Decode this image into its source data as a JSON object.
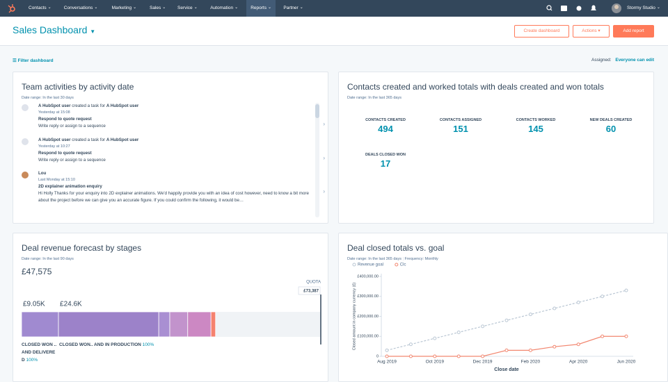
{
  "nav": {
    "items": [
      "Contacts",
      "Conversations",
      "Marketing",
      "Sales",
      "Service",
      "Automation",
      "Reports",
      "Partner"
    ],
    "active": 6,
    "user": "Stormy Studio"
  },
  "header": {
    "title": "Sales Dashboard",
    "buttons": [
      "Create dashboard",
      "Actions",
      "Add report"
    ]
  },
  "filter": {
    "label": "Filter dashboard",
    "assigned_label": "Assigned:",
    "assigned_value": "Everyone can edit"
  },
  "activities": {
    "title": "Team activities by activity date",
    "date_range": "Date range: In the last 30 days",
    "items": [
      {
        "actor": "A HubSpot user",
        "action": "created a task for",
        "target": "A HubSpot user",
        "time": "Yesterday at 15:08",
        "subject": "Respond to quote request",
        "body": "Write reply or assign to a sequence"
      },
      {
        "actor": "A HubSpot user",
        "action": "created a task for",
        "target": "A HubSpot user",
        "time": "Yesterday at 10:27",
        "subject": "Respond to quote request",
        "body": "Write reply or assign to a sequence"
      },
      {
        "actor": "Lou",
        "time": "Last Monday at 15:10",
        "subject": "2D explainer animation enquiry",
        "body": "Hi Holly Thanks for your enquiry into 2D explainer animations. We'd happily provide you with an idea of cost however, need to know a bit more about the project before we can give you an accurate figure. If you could confirm the following, it would be…"
      }
    ]
  },
  "totals": {
    "title": "Contacts created and worked totals with deals created and won totals",
    "date_range": "Date range: In the last 365 days",
    "metrics": [
      {
        "label": "CONTACTS CREATED",
        "value": "494"
      },
      {
        "label": "CONTACTS ASSIGNED",
        "value": "151"
      },
      {
        "label": "CONTACTS WORKED",
        "value": "145"
      },
      {
        "label": "NEW DEALS CREATED",
        "value": "60"
      },
      {
        "label": "DEALS CLOSED WON",
        "value": "17"
      }
    ]
  },
  "forecast": {
    "title": "Deal revenue forecast by stages",
    "date_range": "Date range: In the last 90 days",
    "total": "£47,575",
    "quota_label": "QUOTA",
    "quota": {
      "value": 73387,
      "label": "£73,387"
    },
    "segments": {
      "values": [
        9050,
        24600,
        2700,
        4400,
        5700,
        1125
      ],
      "value_labels": [
        "£9.05K",
        "£24.6K",
        null,
        null,
        null,
        null
      ],
      "colors": [
        "#a08ad0",
        "#9c82c9",
        "#a98fd2",
        "#c293cc",
        "#cc88c3",
        "#f5826f"
      ]
    },
    "stages": [
      {
        "name": "CLOSED WON .. AND DELIVERED",
        "percent": "100%"
      },
      {
        "name": "CLOSED WON.. AND IN PRODUCTION",
        "percent": "100%"
      }
    ]
  },
  "goal_chart": {
    "type": "line",
    "title": "Deal closed totals vs. goal",
    "date_range": "Date range: In the last 365 days",
    "frequency": "Frequency: Monthly",
    "x_label": "Close date",
    "y_label": "Closed amount in company currency (£)",
    "categories": [
      "Aug 2019",
      null,
      "Oct 2019",
      null,
      "Dec 2019",
      null,
      "Feb 2020",
      null,
      "Apr 2020",
      null,
      "Jun 2020"
    ],
    "series": [
      {
        "name": "Revenue goal",
        "color": "#b9c6d3",
        "dashed": true,
        "values": [
          30000,
          60000,
          90000,
          120000,
          150000,
          180000,
          210000,
          240000,
          270000,
          300000,
          330000
        ]
      },
      {
        "name": "Clc",
        "color": "#f2866f",
        "dashed": false,
        "values": [
          0,
          0,
          0,
          0,
          0,
          30000,
          30000,
          48000,
          60000,
          100000,
          100000
        ]
      }
    ],
    "ylim": [
      0,
      400000
    ],
    "yticks": [
      0,
      {
        "value": 100000,
        "label": "£100,000.00"
      },
      {
        "value": 200000,
        "label": "£200,000.00"
      },
      {
        "value": 300000,
        "label": "£300,000.00"
      },
      {
        "value": 400000,
        "label": "£400,000.00"
      }
    ]
  }
}
